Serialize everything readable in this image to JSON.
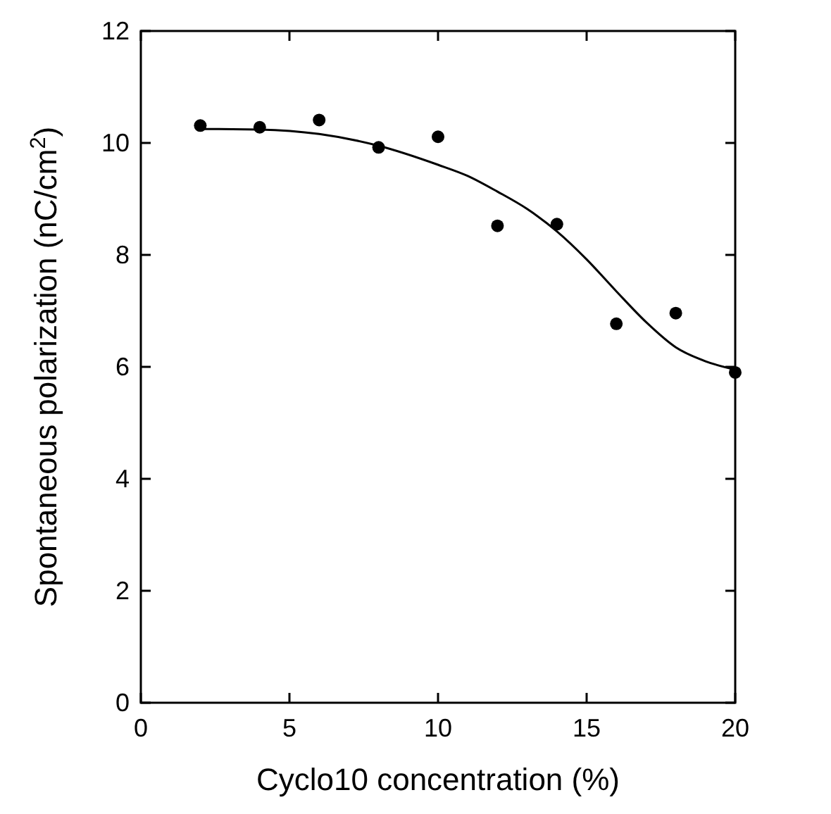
{
  "chart_data": {
    "type": "scatter",
    "xlabel": "Cyclo10 concentration (%)",
    "ylabel": "Spontaneous polarization (nC/cm$^{2}$)",
    "xlim": [
      0,
      20
    ],
    "ylim": [
      0,
      12
    ],
    "xticks": [
      0,
      5,
      10,
      15,
      20
    ],
    "yticks": [
      0,
      2,
      4,
      6,
      8,
      10,
      12
    ],
    "grid": false,
    "series": [
      {
        "color": "#000000",
        "marker": "circle",
        "x": [
          2,
          4,
          6,
          8,
          10,
          12,
          14,
          16,
          18,
          20
        ],
        "values": [
          10.31,
          10.28,
          10.41,
          9.92,
          10.11,
          8.52,
          8.55,
          6.77,
          6.96,
          5.9
        ]
      },
      {
        "type": "line",
        "color": "#000000",
        "marker": "none",
        "x": [
          2,
          4,
          6,
          8,
          10,
          11,
          12,
          13,
          14,
          15,
          16,
          17,
          18,
          19,
          20
        ],
        "values": [
          10.25,
          10.24,
          10.16,
          9.95,
          9.61,
          9.41,
          9.13,
          8.82,
          8.42,
          7.92,
          7.35,
          6.8,
          6.35,
          6.1,
          5.95
        ]
      }
    ]
  }
}
